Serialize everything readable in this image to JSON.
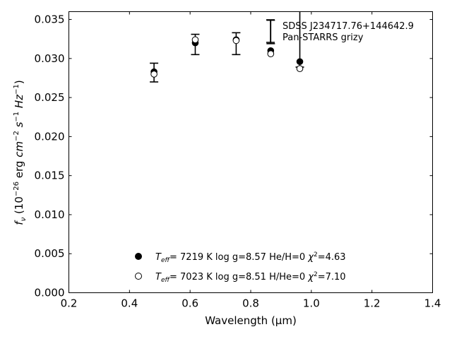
{
  "chart_data": {
    "type": "scatter",
    "xlabel": "Wavelength (μm)",
    "ylabel_parts": {
      "f": "f",
      "nu": "ν",
      "unit_open": " (10",
      "unit_exp1": "−26",
      "unit_mid1": " erg ",
      "unit_cm": "cm",
      "unit_exp2": "−2",
      "unit_s": " s",
      "unit_exp3": "−1",
      "unit_hz": " Hz",
      "unit_exp4": "−1",
      "unit_close": ")"
    },
    "xlim": [
      0.2,
      1.4
    ],
    "ylim": [
      0.0,
      0.036
    ],
    "xticks": [
      "0.2",
      "0.4",
      "0.6",
      "0.8",
      "1.0",
      "1.2",
      "1.4"
    ],
    "xtick_values": [
      0.2,
      0.4,
      0.6,
      0.8,
      1.0,
      1.2,
      1.4
    ],
    "yticks": [
      "0.000",
      "0.005",
      "0.010",
      "0.015",
      "0.020",
      "0.025",
      "0.030",
      "0.035"
    ],
    "ytick_values": [
      0.0,
      0.005,
      0.01,
      0.015,
      0.02,
      0.025,
      0.03,
      0.035
    ],
    "grid": false,
    "observed": {
      "label_line1": "SDSS J234717.76+144642.9",
      "label_line2": "Pan-STARRS grizy",
      "points": [
        {
          "x": 0.481,
          "y": 0.0282,
          "yerr": 0.0012
        },
        {
          "x": 0.617,
          "y": 0.0318,
          "yerr": 0.0013
        },
        {
          "x": 0.752,
          "y": 0.0319,
          "yerr": 0.0014
        },
        {
          "x": 0.866,
          "y": 0.0334,
          "yerr": 0.0015
        },
        {
          "x": 0.962,
          "y": 0.0329,
          "yerr": 0.004
        }
      ]
    },
    "series": [
      {
        "marker": "filled-circle",
        "legend": {
          "T": "T",
          "sub": "eff",
          "rest": "=  7219 K  log g=8.57  He/H=0  ",
          "chi": "χ",
          "sup": "2",
          "chi_val": "=4.63"
        },
        "points": [
          {
            "x": 0.481,
            "y": 0.0283
          },
          {
            "x": 0.617,
            "y": 0.032
          },
          {
            "x": 0.752,
            "y": 0.0324
          },
          {
            "x": 0.866,
            "y": 0.031
          },
          {
            "x": 0.962,
            "y": 0.0296
          }
        ]
      },
      {
        "marker": "open-circle",
        "legend": {
          "T": "T",
          "sub": "eff",
          "rest": "=  7023 K  log g=8.51  H/He=0  ",
          "chi": "χ",
          "sup": "2",
          "chi_val": "=7.10"
        },
        "points": [
          {
            "x": 0.481,
            "y": 0.028
          },
          {
            "x": 0.617,
            "y": 0.0324
          },
          {
            "x": 0.752,
            "y": 0.0323
          },
          {
            "x": 0.866,
            "y": 0.0306
          },
          {
            "x": 0.962,
            "y": 0.0287
          }
        ]
      }
    ]
  }
}
